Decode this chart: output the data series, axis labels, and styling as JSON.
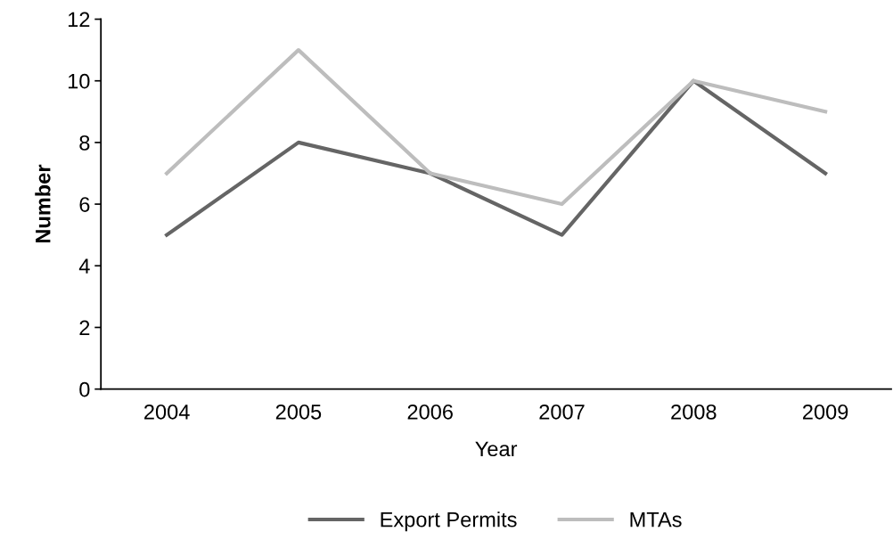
{
  "chart_data": {
    "type": "line",
    "xlabel": "Year",
    "ylabel": "Number",
    "categories": [
      "2004",
      "2005",
      "2006",
      "2007",
      "2008",
      "2009"
    ],
    "series": [
      {
        "name": "Export Permits",
        "color": "#656565",
        "values": [
          5,
          8,
          7,
          5,
          10,
          7
        ]
      },
      {
        "name": "MTAs",
        "color": "#bdbdbd",
        "values": [
          7,
          11,
          7,
          6,
          10,
          9
        ]
      }
    ],
    "ylim": [
      0,
      12
    ],
    "yticks": [
      0,
      2,
      4,
      6,
      8,
      10,
      12
    ],
    "grid": false,
    "legend": "bottom",
    "marker": "none",
    "line_style": "solid"
  }
}
